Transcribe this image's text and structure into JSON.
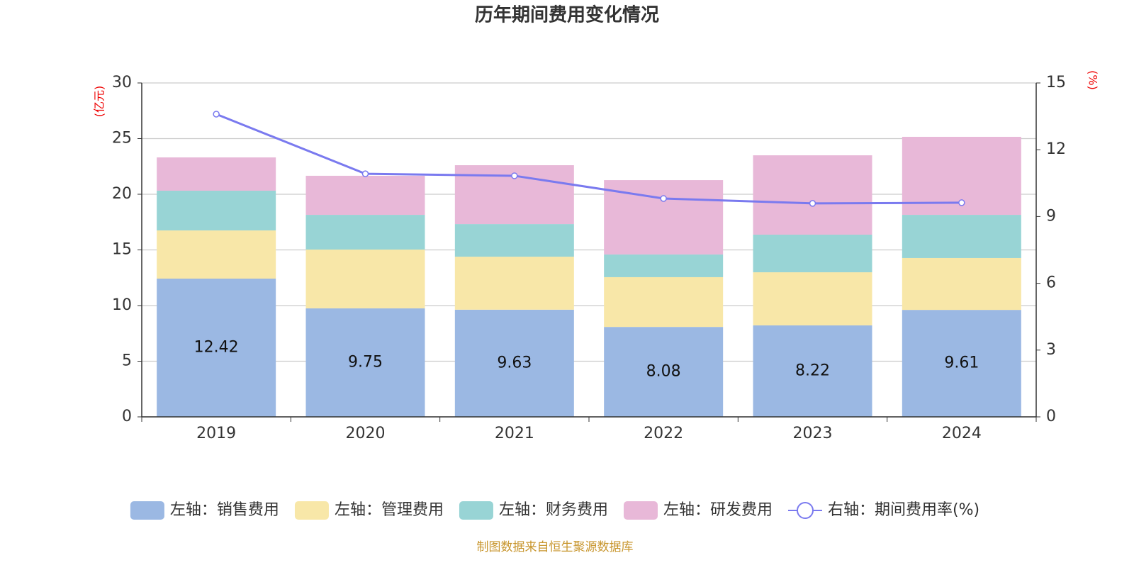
{
  "chart_data": {
    "type": "bar-line",
    "title": "历年期间费用变化情况",
    "y_label": "(亿元)",
    "y2_label": "(%)",
    "source": "制图数据来自恒生聚源数据库",
    "categories": [
      "2019",
      "2020",
      "2021",
      "2022",
      "2023",
      "2024"
    ],
    "series": [
      {
        "name": "左轴：销售费用",
        "type": "bar",
        "color": "#9bb8e3",
        "values": [
          12.42,
          9.75,
          9.63,
          8.08,
          8.22,
          9.61
        ],
        "show_labels": true
      },
      {
        "name": "左轴：管理费用",
        "type": "bar",
        "color": "#f8e7a8",
        "values": [
          4.33,
          5.28,
          4.76,
          4.47,
          4.77,
          4.66
        ]
      },
      {
        "name": "左轴：财务费用",
        "type": "bar",
        "color": "#98d4d5",
        "values": [
          3.57,
          3.12,
          2.93,
          2.04,
          3.38,
          3.88
        ]
      },
      {
        "name": "左轴：研发费用",
        "type": "bar",
        "color": "#e8b8d8",
        "values": [
          2.99,
          3.51,
          5.29,
          6.68,
          7.13,
          7.01
        ]
      },
      {
        "name": "右轴：期间费用率(%)",
        "type": "line",
        "axis": "y2",
        "color": "#7a7aef",
        "values": [
          13.6,
          10.92,
          10.83,
          9.81,
          9.59,
          9.62
        ]
      }
    ],
    "ylim": [
      0,
      30
    ],
    "yticks": [
      0,
      5,
      10,
      15,
      20,
      25,
      30
    ],
    "y2lim": [
      0,
      15
    ],
    "y2ticks": [
      0,
      3,
      6,
      9,
      12,
      15
    ],
    "grid": true,
    "legend": "bottom"
  }
}
